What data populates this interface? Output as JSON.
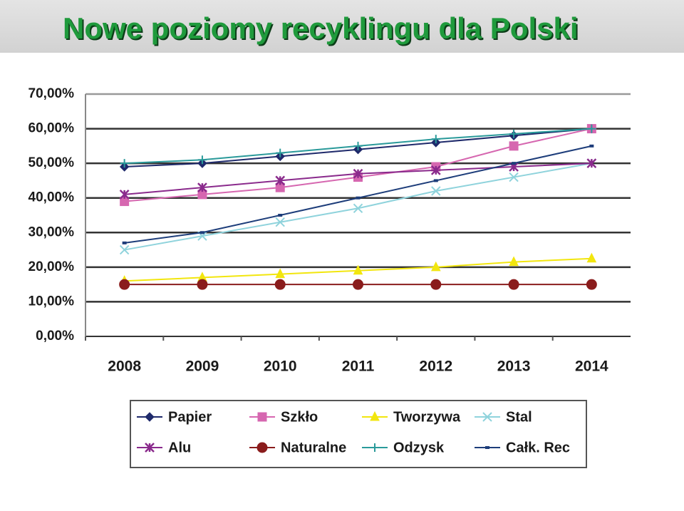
{
  "chart_data": {
    "type": "line",
    "title": "Nowe poziomy recyklingu dla Polski",
    "categories": [
      "2008",
      "2009",
      "2010",
      "2011",
      "2012",
      "2013",
      "2014"
    ],
    "ylim": [
      0,
      70
    ],
    "yticks": [
      {
        "value": 0,
        "label": "0,00%"
      },
      {
        "value": 10,
        "label": "10,00%"
      },
      {
        "value": 20,
        "label": "20,00%"
      },
      {
        "value": 30,
        "label": "30,00%"
      },
      {
        "value": 40,
        "label": "40,00%"
      },
      {
        "value": 50,
        "label": "50,00%"
      },
      {
        "value": 60,
        "label": "60,00%"
      },
      {
        "value": 70,
        "label": "70,00%"
      }
    ],
    "grid": true,
    "legend": "bottom",
    "series": [
      {
        "name": "Papier",
        "color": "#1f2a6b",
        "marker": "diamond",
        "values": [
          49,
          50,
          52,
          54,
          56,
          58,
          60
        ]
      },
      {
        "name": "Szkło",
        "color": "#d667b0",
        "marker": "square",
        "values": [
          39,
          41,
          43,
          46,
          49,
          55,
          60
        ]
      },
      {
        "name": "Tworzywa",
        "color": "#f2e60e",
        "marker": "triangle",
        "values": [
          16,
          17,
          18,
          19,
          20,
          21.5,
          22.5
        ]
      },
      {
        "name": "Stal",
        "color": "#8fd3dc",
        "marker": "x",
        "values": [
          25,
          29,
          33,
          37,
          42,
          46,
          50
        ]
      },
      {
        "name": "Alu",
        "color": "#8a2a8c",
        "marker": "star",
        "values": [
          41,
          43,
          45,
          47,
          48,
          49,
          50
        ]
      },
      {
        "name": "Naturalne",
        "color": "#8a1c1c",
        "marker": "circle",
        "values": [
          15,
          15,
          15,
          15,
          15,
          15,
          15
        ]
      },
      {
        "name": "Odzysk",
        "color": "#2a9a9a",
        "marker": "plus",
        "values": [
          50,
          51,
          53,
          55,
          57,
          58.5,
          60
        ]
      },
      {
        "name": "Całk. Rec",
        "color": "#1d3d7a",
        "marker": "dot",
        "values": [
          27,
          30,
          35,
          40,
          45,
          50,
          55
        ]
      }
    ]
  }
}
